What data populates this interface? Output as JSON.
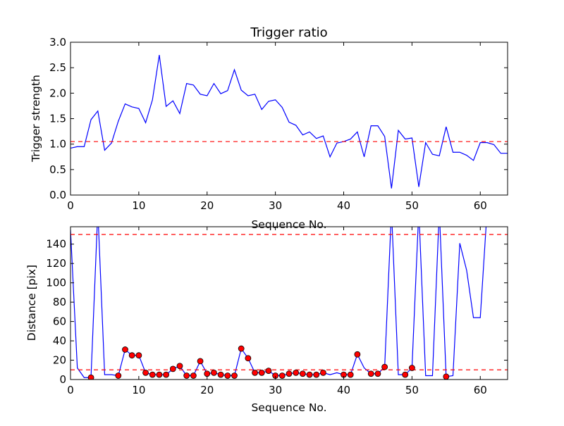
{
  "chart_data": [
    {
      "type": "line",
      "title": "Trigger ratio",
      "xlabel": "Sequence No.",
      "ylabel": "Trigger strength",
      "xlim": [
        0,
        64
      ],
      "ylim": [
        0,
        3.0
      ],
      "x_ticks": [
        0,
        10,
        20,
        30,
        40,
        50,
        60
      ],
      "x_tick_labels": [
        "0",
        "10",
        "20",
        "30",
        "40",
        "50",
        "60"
      ],
      "y_ticks": [
        0,
        0.5,
        1.0,
        1.5,
        2.0,
        2.5,
        3.0
      ],
      "y_tick_labels": [
        "0.0",
        "0.5",
        "1.0",
        "1.5",
        "2.0",
        "2.5",
        "3.0"
      ],
      "grid": false,
      "series": [
        {
          "color": "#0000ff",
          "x": [
            0,
            1,
            2,
            3,
            4,
            5,
            6,
            7,
            8,
            9,
            10,
            11,
            12,
            13,
            14,
            15,
            16,
            17,
            18,
            19,
            20,
            21,
            22,
            23,
            24,
            25,
            26,
            27,
            28,
            29,
            30,
            31,
            32,
            33,
            34,
            35,
            36,
            37,
            38,
            39,
            40,
            41,
            42,
            43,
            44,
            45,
            46,
            47,
            48,
            49,
            50,
            51,
            52,
            53,
            54,
            55,
            56,
            57,
            58,
            59,
            60,
            61,
            62,
            63,
            64
          ],
          "y": [
            0.92,
            0.95,
            0.95,
            1.48,
            1.65,
            0.88,
            1.02,
            1.45,
            1.79,
            1.73,
            1.7,
            1.42,
            1.87,
            2.75,
            1.74,
            1.85,
            1.6,
            2.19,
            2.16,
            1.98,
            1.95,
            2.19,
            1.99,
            2.05,
            2.46,
            2.06,
            1.95,
            1.98,
            1.68,
            1.84,
            1.87,
            1.72,
            1.43,
            1.37,
            1.18,
            1.24,
            1.11,
            1.16,
            0.75,
            1.02,
            1.05,
            1.1,
            1.24,
            0.75,
            1.36,
            1.36,
            1.15,
            0.13,
            1.27,
            1.1,
            1.12,
            0.16,
            1.03,
            0.8,
            0.77,
            1.34,
            0.84,
            0.84,
            0.78,
            0.68,
            1.03,
            1.03,
            0.99,
            0.82,
            0.82
          ]
        }
      ],
      "reference_lines": [
        {
          "y": 1.05,
          "color": "#ff0000",
          "style": "dashed"
        }
      ]
    },
    {
      "type": "line",
      "title": "",
      "xlabel": "Sequence No.",
      "ylabel": "Distance [pix]",
      "xlim": [
        0,
        64
      ],
      "ylim": [
        0,
        158
      ],
      "x_ticks": [
        0,
        10,
        20,
        30,
        40,
        50,
        60
      ],
      "x_tick_labels": [
        "0",
        "10",
        "20",
        "30",
        "40",
        "50",
        "60"
      ],
      "y_ticks": [
        0,
        20,
        40,
        60,
        80,
        100,
        120,
        140
      ],
      "y_tick_labels": [
        "0",
        "20",
        "40",
        "60",
        "80",
        "100",
        "120",
        "140"
      ],
      "grid": false,
      "series": [
        {
          "color": "#0000ff",
          "x": [
            0,
            1,
            2,
            3,
            4,
            5,
            6,
            7,
            8,
            9,
            10,
            11,
            12,
            13,
            14,
            15,
            16,
            17,
            18,
            19,
            20,
            21,
            22,
            23,
            24,
            25,
            26,
            27,
            28,
            29,
            30,
            31,
            32,
            33,
            34,
            35,
            36,
            37,
            38,
            39,
            40,
            41,
            42,
            43,
            44,
            45,
            46,
            47,
            48,
            49,
            50,
            51,
            52,
            53,
            54,
            55,
            56,
            57,
            58,
            59,
            60,
            61
          ],
          "y": [
            155,
            12,
            2,
            2,
            175,
            5,
            5,
            4,
            31,
            25,
            25,
            7,
            5,
            5,
            5,
            11,
            14,
            4,
            4,
            19,
            6,
            7,
            5,
            4,
            4,
            32,
            22,
            7,
            7,
            9,
            4,
            4,
            6,
            7,
            6,
            5,
            5,
            7,
            5,
            7,
            5,
            5,
            26,
            12,
            6,
            6,
            13,
            175,
            5,
            5,
            12,
            175,
            4,
            4,
            175,
            3,
            4,
            141,
            113,
            64,
            64,
            175
          ]
        }
      ],
      "markers": {
        "color": "#ff0000",
        "x": [
          3,
          7,
          8,
          9,
          10,
          11,
          12,
          13,
          14,
          15,
          16,
          17,
          18,
          19,
          20,
          21,
          22,
          23,
          24,
          25,
          26,
          27,
          28,
          29,
          30,
          31,
          32,
          33,
          34,
          35,
          36,
          37,
          40,
          41,
          42,
          44,
          45,
          46,
          49,
          50,
          55
        ],
        "y": [
          2,
          4,
          31,
          25,
          25,
          7,
          5,
          5,
          5,
          11,
          14,
          4,
          4,
          19,
          6,
          7,
          5,
          4,
          4,
          32,
          22,
          7,
          7,
          9,
          4,
          4,
          6,
          7,
          6,
          5,
          5,
          7,
          5,
          5,
          26,
          6,
          6,
          13,
          5,
          12,
          3
        ]
      },
      "reference_lines": [
        {
          "y": 150,
          "color": "#ff0000",
          "style": "dashed"
        },
        {
          "y": 10,
          "color": "#ff0000",
          "style": "dashed"
        }
      ]
    }
  ]
}
